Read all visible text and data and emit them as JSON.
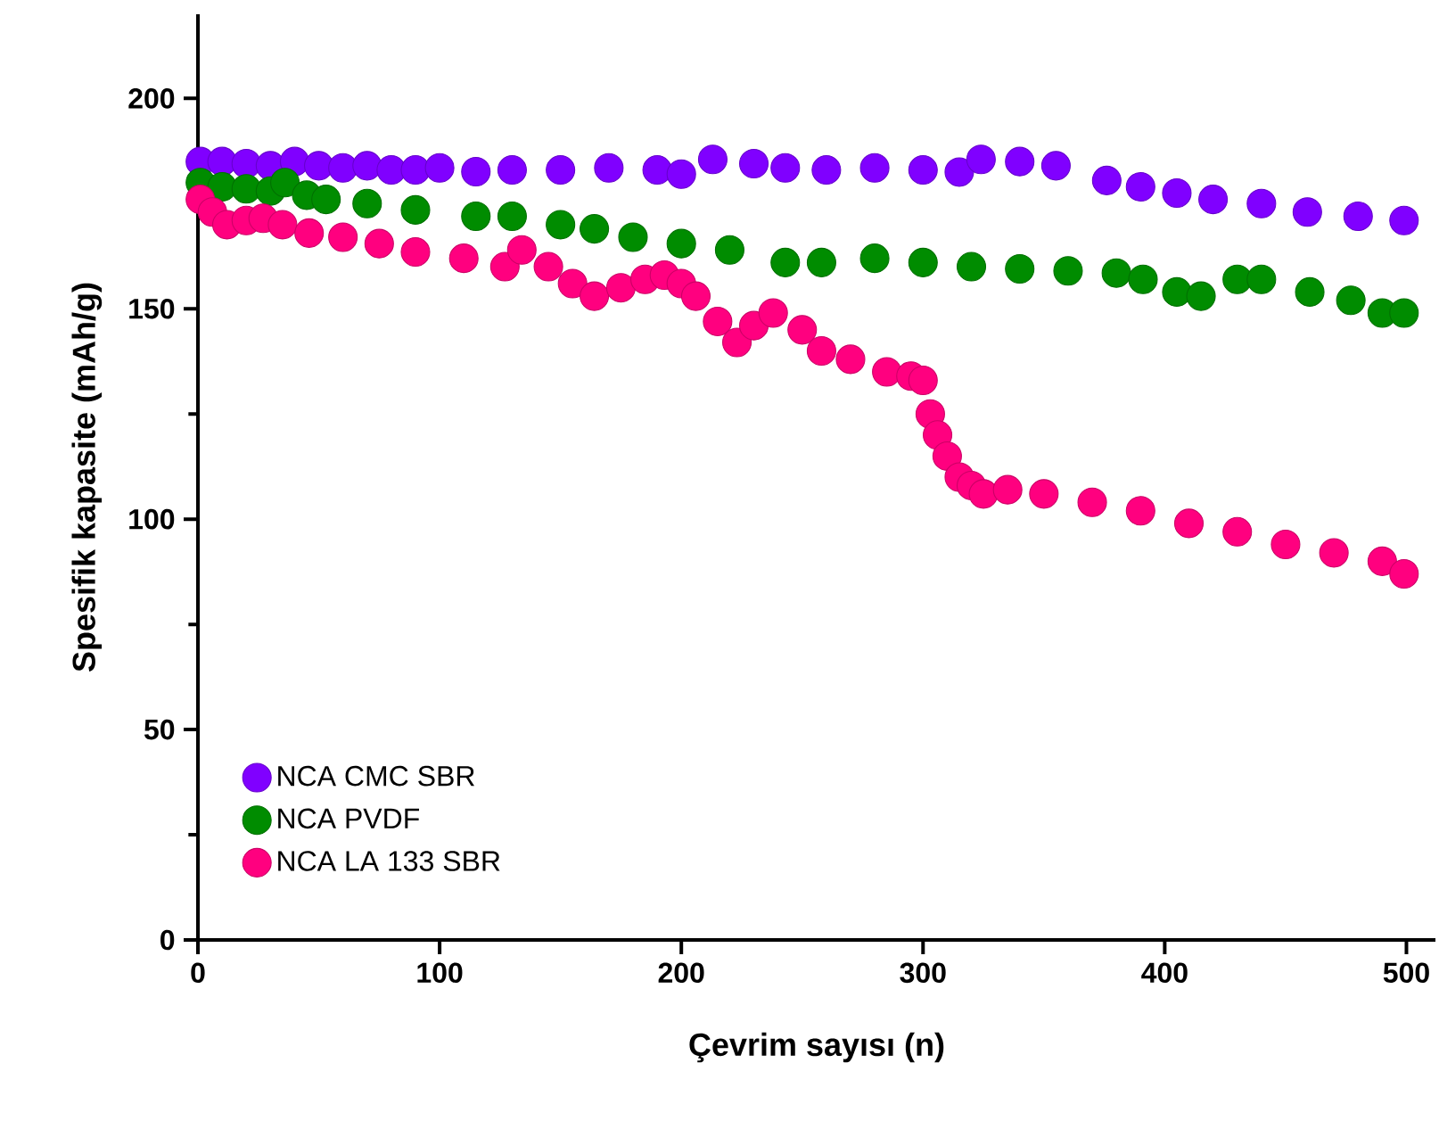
{
  "chart_data": {
    "type": "scatter",
    "xlabel": "Çevrim sayısı (n)",
    "ylabel": "Spesifik kapasite (mAh/g)",
    "xlim": [
      0,
      512
    ],
    "ylim": [
      0,
      220
    ],
    "xticks": [
      0,
      100,
      200,
      300,
      400,
      500
    ],
    "yticks": [
      0,
      50,
      100,
      150,
      200
    ],
    "marker": "circle",
    "legend": "bottom left",
    "grid": false,
    "series": [
      {
        "name": "NCA CMC SBR",
        "color": "#8000ff",
        "x": [
          1,
          10,
          20,
          30,
          40,
          50,
          60,
          70,
          80,
          90,
          100,
          115,
          130,
          150,
          170,
          190,
          200,
          213,
          230,
          243,
          260,
          280,
          300,
          315,
          324,
          340,
          355,
          376,
          390,
          405,
          420,
          440,
          459,
          480,
          499
        ],
        "values": [
          185,
          185,
          184.5,
          184,
          185,
          184,
          183.5,
          184,
          183,
          183,
          183.5,
          182.6,
          183,
          183,
          183.5,
          183,
          182,
          185.5,
          184.5,
          183.5,
          183,
          183.5,
          183,
          182.5,
          185.5,
          185,
          184,
          180.5,
          179,
          177.5,
          176,
          175,
          173,
          172,
          171
        ]
      },
      {
        "name": "NCA PVDF",
        "color": "#008c00",
        "x": [
          1,
          10,
          20,
          30,
          36,
          45,
          53,
          70,
          90,
          115,
          130,
          150,
          164,
          180,
          200,
          220,
          243,
          258,
          280,
          300,
          320,
          340,
          360,
          380,
          391,
          405,
          415,
          430,
          440,
          460,
          477,
          490,
          499
        ],
        "values": [
          180,
          179,
          178.5,
          178,
          180,
          177,
          176,
          175,
          173.5,
          172,
          172,
          170,
          169,
          167,
          165.5,
          164,
          161,
          161,
          162,
          161,
          160,
          159.5,
          159,
          158.5,
          157,
          154,
          153,
          157,
          157,
          154,
          152,
          149,
          149
        ]
      },
      {
        "name": "NCA LA 133 SBR",
        "color": "#ff007f",
        "x": [
          1,
          6,
          12,
          20,
          27,
          35,
          46,
          60,
          75,
          90,
          110,
          127,
          134,
          145,
          155,
          164,
          175,
          185,
          193,
          200,
          206,
          215,
          223,
          230,
          238,
          250,
          258,
          270,
          285,
          295,
          300,
          303,
          306,
          310,
          315,
          320,
          325,
          335,
          350,
          370,
          390,
          410,
          430,
          450,
          470,
          490,
          499
        ],
        "values": [
          176,
          173,
          170,
          171,
          171.5,
          170,
          168,
          167,
          165.5,
          163.5,
          162,
          160,
          164,
          160,
          156,
          153,
          155,
          157,
          158,
          156,
          153,
          147,
          142,
          146,
          149,
          145,
          140,
          138,
          135,
          134,
          133,
          125,
          120,
          115,
          110,
          108,
          106,
          107,
          106,
          104,
          102,
          99,
          97,
          94,
          92,
          90,
          87
        ]
      }
    ]
  }
}
